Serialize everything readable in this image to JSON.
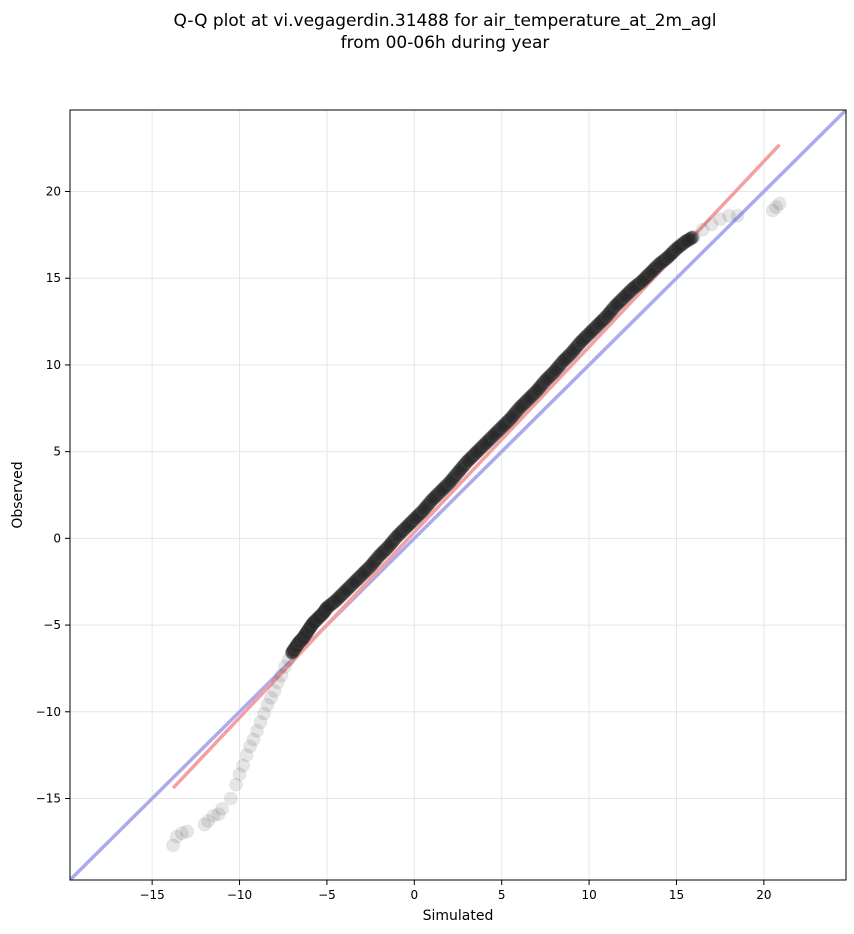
{
  "chart_data": {
    "type": "scatter",
    "title": "Q-Q plot at vi.vegagerdin.31488 for air_temperature_at_2m_agl",
    "subtitle": "from 00-06h during year",
    "xlabel": "Simulated",
    "ylabel": "Observed",
    "xlim": [
      -19.7,
      24.7
    ],
    "ylim": [
      -19.7,
      24.7
    ],
    "xticks": [
      -15,
      -10,
      -5,
      0,
      5,
      10,
      15,
      20
    ],
    "yticks": [
      -15,
      -10,
      -5,
      0,
      5,
      10,
      15,
      20
    ],
    "xtick_labels": [
      "−15",
      "−10",
      "−5",
      "0",
      "5",
      "10",
      "15",
      "20"
    ],
    "ytick_labels": [
      "−15",
      "−10",
      "−5",
      "0",
      "5",
      "10",
      "15",
      "20"
    ],
    "grid": true,
    "identity_line": {
      "x": [
        -19.7,
        24.7
      ],
      "y": [
        -19.7,
        24.7
      ],
      "color": "#aaaaf0"
    },
    "fit_line": {
      "x": [
        -13.8,
        20.9
      ],
      "y": [
        -14.4,
        22.7
      ],
      "color": "#f4a0a0"
    },
    "points": {
      "x": [
        -13.8,
        -13.6,
        -13.3,
        -13.0,
        -12.0,
        -11.8,
        -11.5,
        -11.2,
        -11.0,
        -10.5,
        -10.2,
        -10.0,
        -9.8,
        -9.6,
        -9.4,
        -9.2,
        -9.0,
        -8.8,
        -8.6,
        -8.4,
        -8.2,
        -8.0,
        -7.8,
        -7.6,
        -7.4,
        -7.2,
        -7.0,
        -6.8,
        -6.6,
        -6.4,
        -6.2,
        -6.0,
        -5.8,
        -5.5,
        -5.2,
        -5.0,
        -4.5,
        -4.0,
        -3.5,
        -3.0,
        -2.5,
        -2.0,
        -1.5,
        -1.0,
        -0.5,
        0.0,
        0.5,
        1.0,
        1.5,
        2.0,
        2.5,
        3.0,
        3.5,
        4.0,
        4.5,
        5.0,
        5.5,
        6.0,
        6.5,
        7.0,
        7.5,
        8.0,
        8.5,
        9.0,
        9.5,
        10.0,
        10.5,
        11.0,
        11.5,
        12.0,
        12.5,
        13.0,
        13.5,
        14.0,
        14.5,
        15.0,
        15.5,
        16.0,
        16.5,
        17.0,
        17.5,
        18.0,
        18.5,
        20.5,
        20.7,
        20.9
      ],
      "y": [
        -17.7,
        -17.2,
        -17.0,
        -16.9,
        -16.5,
        -16.3,
        -16.0,
        -15.9,
        -15.6,
        -15.0,
        -14.2,
        -13.6,
        -13.1,
        -12.5,
        -12.0,
        -11.6,
        -11.1,
        -10.6,
        -10.1,
        -9.6,
        -9.2,
        -8.8,
        -8.3,
        -7.9,
        -7.4,
        -7.0,
        -6.6,
        -6.3,
        -6.0,
        -5.8,
        -5.5,
        -5.2,
        -4.9,
        -4.6,
        -4.3,
        -4.0,
        -3.6,
        -3.1,
        -2.6,
        -2.1,
        -1.6,
        -1.0,
        -0.5,
        0.1,
        0.6,
        1.1,
        1.6,
        2.2,
        2.7,
        3.2,
        3.8,
        4.4,
        4.9,
        5.4,
        5.9,
        6.4,
        6.9,
        7.5,
        8.0,
        8.5,
        9.1,
        9.6,
        10.2,
        10.7,
        11.3,
        11.8,
        12.3,
        12.8,
        13.4,
        13.9,
        14.4,
        14.8,
        15.3,
        15.8,
        16.2,
        16.7,
        17.1,
        17.4,
        17.8,
        18.1,
        18.4,
        18.6,
        18.6,
        18.9,
        19.1,
        19.3
      ]
    }
  }
}
